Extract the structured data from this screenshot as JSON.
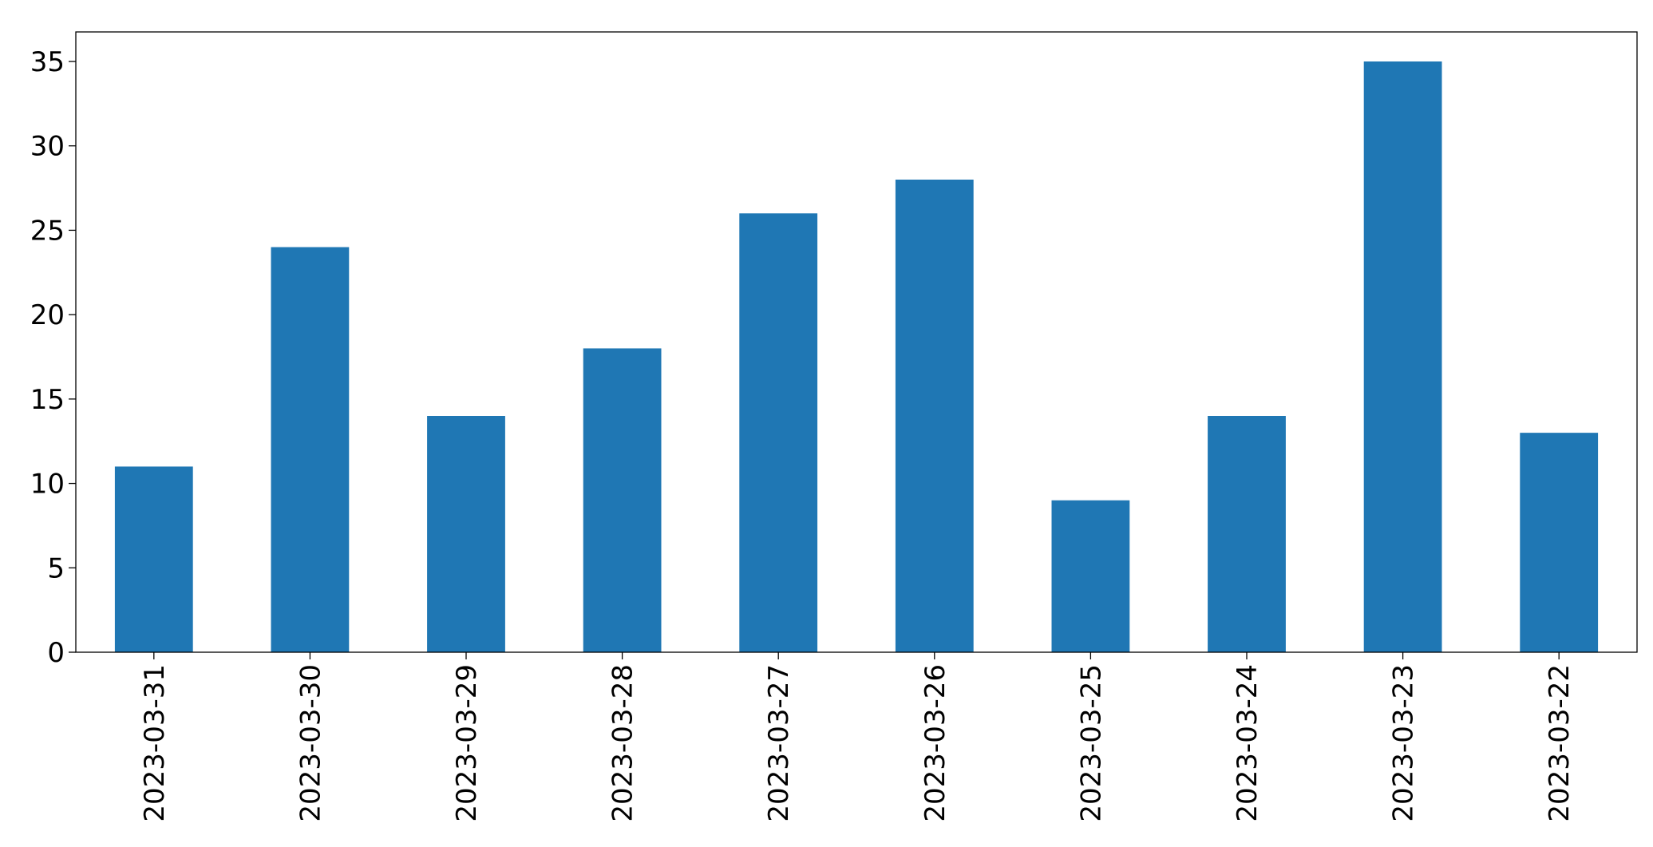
{
  "chart_data": {
    "type": "bar",
    "categories": [
      "2023-03-31",
      "2023-03-30",
      "2023-03-29",
      "2023-03-28",
      "2023-03-27",
      "2023-03-26",
      "2023-03-25",
      "2023-03-24",
      "2023-03-23",
      "2023-03-22"
    ],
    "values": [
      11,
      24,
      14,
      18,
      26,
      28,
      9,
      14,
      35,
      13
    ],
    "color": "#1f77b4",
    "ylim": [
      0,
      36.75
    ],
    "yticks": [
      0,
      5,
      10,
      15,
      20,
      25,
      30,
      35
    ],
    "grid": false
  }
}
